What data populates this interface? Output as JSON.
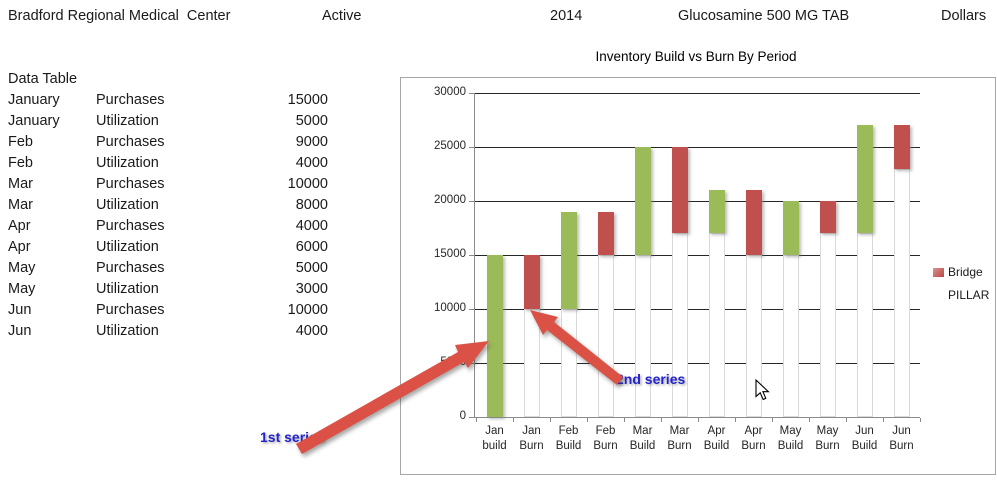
{
  "header": {
    "facility": "Bradford Regional Medical  Center",
    "status": "Active",
    "year": "2014",
    "product": "Glucosamine 500 MG TAB",
    "unit": "Dollars"
  },
  "data_table": {
    "title": "Data Table",
    "rows": [
      {
        "month": "January",
        "type": "Purchases",
        "value": "15000"
      },
      {
        "month": "January",
        "type": "Utilization",
        "value": "5000"
      },
      {
        "month": "Feb",
        "type": "Purchases",
        "value": "9000"
      },
      {
        "month": "Feb",
        "type": "Utilization",
        "value": "4000"
      },
      {
        "month": "Mar",
        "type": "Purchases",
        "value": "10000"
      },
      {
        "month": "Mar",
        "type": "Utilization",
        "value": "8000"
      },
      {
        "month": "Apr",
        "type": "Purchases",
        "value": "4000"
      },
      {
        "month": "Apr",
        "type": "Utilization",
        "value": "6000"
      },
      {
        "month": "May",
        "type": "Purchases",
        "value": "5000"
      },
      {
        "month": "May",
        "type": "Utilization",
        "value": "3000"
      },
      {
        "month": "Jun",
        "type": "Purchases",
        "value": "10000"
      },
      {
        "month": "Jun",
        "type": "Utilization",
        "value": "4000"
      }
    ]
  },
  "chart_data": {
    "type": "bar",
    "subtype": "waterfall",
    "title": "Inventory Build vs Burn By Period",
    "ylabel": "",
    "xlabel": "",
    "ylim": [
      0,
      30000
    ],
    "y_ticks": [
      0,
      5000,
      10000,
      15000,
      20000,
      25000,
      30000
    ],
    "grid": "horizontal",
    "legend_position": "right",
    "legend": [
      {
        "label": "Bridge",
        "color": "#C0504D",
        "swatch_visible": true
      },
      {
        "label": "PILLAR",
        "color": "#FFFFFF",
        "swatch_visible": false
      }
    ],
    "colors": {
      "build": "#9BBB59",
      "burn": "#C0504D",
      "pillar_base": "#FFFFFF"
    },
    "categories": [
      {
        "label_line1": "Jan",
        "label_line2": "build",
        "series": "PILLAR",
        "base": 0,
        "top": 15000
      },
      {
        "label_line1": "Jan",
        "label_line2": "Burn",
        "series": "Bridge",
        "base": 10000,
        "top": 15000
      },
      {
        "label_line1": "Feb",
        "label_line2": "Build",
        "series": "PILLAR",
        "base": 10000,
        "top": 19000
      },
      {
        "label_line1": "Feb",
        "label_line2": "Burn",
        "series": "Bridge",
        "base": 15000,
        "top": 19000
      },
      {
        "label_line1": "Mar",
        "label_line2": "Build",
        "series": "PILLAR",
        "base": 15000,
        "top": 25000
      },
      {
        "label_line1": "Mar",
        "label_line2": "Burn",
        "series": "Bridge",
        "base": 17000,
        "top": 25000
      },
      {
        "label_line1": "Apr",
        "label_line2": "Build",
        "series": "PILLAR",
        "base": 17000,
        "top": 21000
      },
      {
        "label_line1": "Apr",
        "label_line2": "Burn",
        "series": "Bridge",
        "base": 15000,
        "top": 21000
      },
      {
        "label_line1": "May",
        "label_line2": "Build",
        "series": "PILLAR",
        "base": 15000,
        "top": 20000
      },
      {
        "label_line1": "May",
        "label_line2": "Burn",
        "series": "Bridge",
        "base": 17000,
        "top": 20000
      },
      {
        "label_line1": "Jun",
        "label_line2": "Build",
        "series": "PILLAR",
        "base": 17000,
        "top": 27000
      },
      {
        "label_line1": "Jun",
        "label_line2": "Burn",
        "series": "Bridge",
        "base": 23000,
        "top": 27000
      }
    ]
  },
  "annotations": {
    "first_series_label": "1st series",
    "second_series_label": "2nd series",
    "arrow_color": "#db5145",
    "label_color": "#2222cc"
  }
}
